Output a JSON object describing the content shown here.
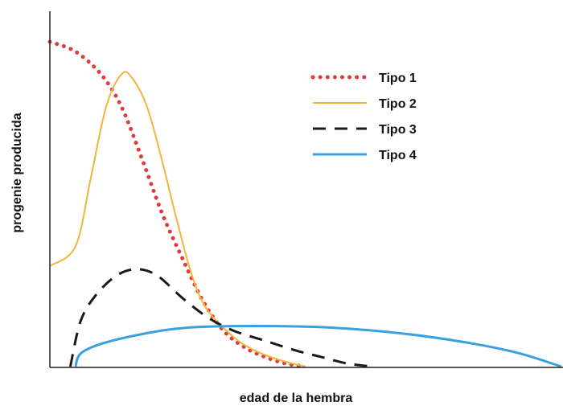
{
  "chart_data": {
    "type": "line",
    "title": "",
    "xlabel": "edad de la hembra",
    "ylabel": "progenie producida",
    "xlim": [
      0,
      100
    ],
    "ylim": [
      0,
      100
    ],
    "grid": false,
    "legend_position": "top-right",
    "series": [
      {
        "name": "Tipo 1",
        "color": "#e03c3c",
        "style": "dotted",
        "points": [
          [
            0,
            100
          ],
          [
            5,
            97
          ],
          [
            10,
            90
          ],
          [
            14,
            80
          ],
          [
            18,
            64
          ],
          [
            22,
            47
          ],
          [
            26,
            33
          ],
          [
            30,
            20
          ],
          [
            34,
            11
          ],
          [
            38,
            6
          ],
          [
            42,
            3
          ],
          [
            46,
            1
          ],
          [
            50,
            0
          ]
        ]
      },
      {
        "name": "Tipo 2",
        "color": "#f2b53b",
        "style": "solid",
        "points": [
          [
            0,
            31
          ],
          [
            5,
            37
          ],
          [
            8,
            58
          ],
          [
            11,
            80
          ],
          [
            14,
            90
          ],
          [
            16,
            89
          ],
          [
            19,
            80
          ],
          [
            22,
            63
          ],
          [
            25,
            44
          ],
          [
            28,
            27
          ],
          [
            31,
            17
          ],
          [
            36,
            9
          ],
          [
            40,
            5
          ],
          [
            45,
            2
          ],
          [
            50,
            0
          ]
        ]
      },
      {
        "name": "Tipo 3",
        "color": "#1a1a1a",
        "style": "dashed",
        "points": [
          [
            4,
            0
          ],
          [
            6,
            14
          ],
          [
            9,
            22
          ],
          [
            13,
            28
          ],
          [
            17,
            30
          ],
          [
            21,
            28
          ],
          [
            26,
            21
          ],
          [
            31,
            15
          ],
          [
            36,
            11
          ],
          [
            42,
            8
          ],
          [
            48,
            5
          ],
          [
            53,
            3
          ],
          [
            58,
            1
          ],
          [
            63,
            0
          ]
        ]
      },
      {
        "name": "Tipo 4",
        "color": "#3aa0e0",
        "style": "solid",
        "points": [
          [
            5,
            0
          ],
          [
            6,
            4
          ],
          [
            10,
            7
          ],
          [
            18,
            10
          ],
          [
            27,
            12
          ],
          [
            40,
            12.5
          ],
          [
            55,
            12
          ],
          [
            70,
            10
          ],
          [
            83,
            7
          ],
          [
            92,
            4
          ],
          [
            100,
            0
          ]
        ]
      }
    ]
  }
}
